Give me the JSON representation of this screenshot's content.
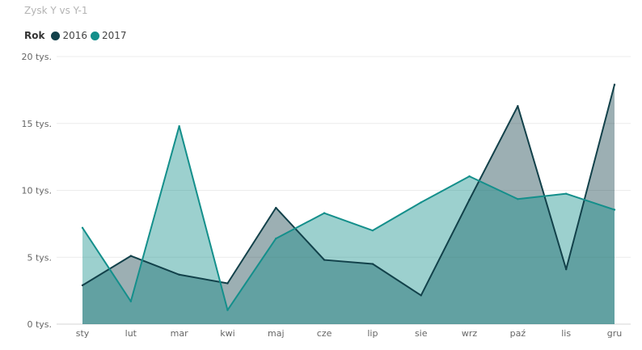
{
  "chart_data": {
    "type": "area",
    "title": "Zysk Y vs Y-1",
    "legend_title": "Rok",
    "legend_position": "top-left",
    "categories": [
      "sty",
      "lut",
      "mar",
      "kwi",
      "maj",
      "cze",
      "lip",
      "sie",
      "wrz",
      "paź",
      "lis",
      "gru"
    ],
    "series": [
      {
        "name": "2016",
        "color": "#12414a",
        "values": [
          2900,
          5100,
          3700,
          3050,
          8700,
          4800,
          4500,
          2150,
          9300,
          16300,
          4100,
          17900
        ]
      },
      {
        "name": "2017",
        "color": "#148f8b",
        "values": [
          7200,
          1700,
          14800,
          1050,
          6400,
          8300,
          7000,
          9100,
          11050,
          9350,
          9750,
          8550
        ]
      }
    ],
    "yticks": [
      "0 tys.",
      "5 tys.",
      "10 tys.",
      "15 tys.",
      "20 tys."
    ],
    "ylim": [
      0,
      20000
    ],
    "grid": true
  }
}
